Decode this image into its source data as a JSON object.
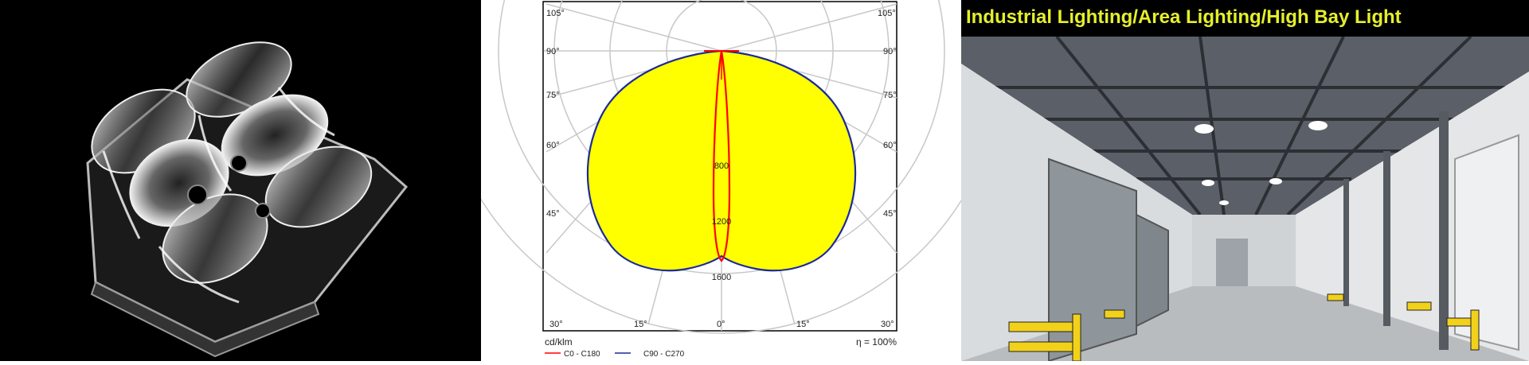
{
  "panels": {
    "lens": {
      "icon": "led-lens-array-icon"
    },
    "polar": {
      "angle_labels": {
        "a105": "105°",
        "a90": "90°",
        "a75": "75°",
        "a60": "60°",
        "a45": "45°",
        "a30": "30°",
        "a15": "15°",
        "a0": "0°"
      },
      "radial_labels": {
        "r800": "800",
        "r1200": "1200",
        "r1600": "1600"
      },
      "unit": "cd/klm",
      "efficiency": "η = 100%",
      "legend": {
        "c0": "C0 - C180",
        "c90": "C90 - C270"
      },
      "colors": {
        "fill": "#ffff00",
        "c0_line": "#ff0000",
        "c90_line": "#1a2a9a",
        "grid": "#c8c8c8"
      }
    },
    "warehouse": {
      "banner": "Industrial Lighting/Area Lighting/High Bay Light",
      "banner_color": "#e5ef2a",
      "icon": "high-bay-warehouse-icon"
    }
  }
}
